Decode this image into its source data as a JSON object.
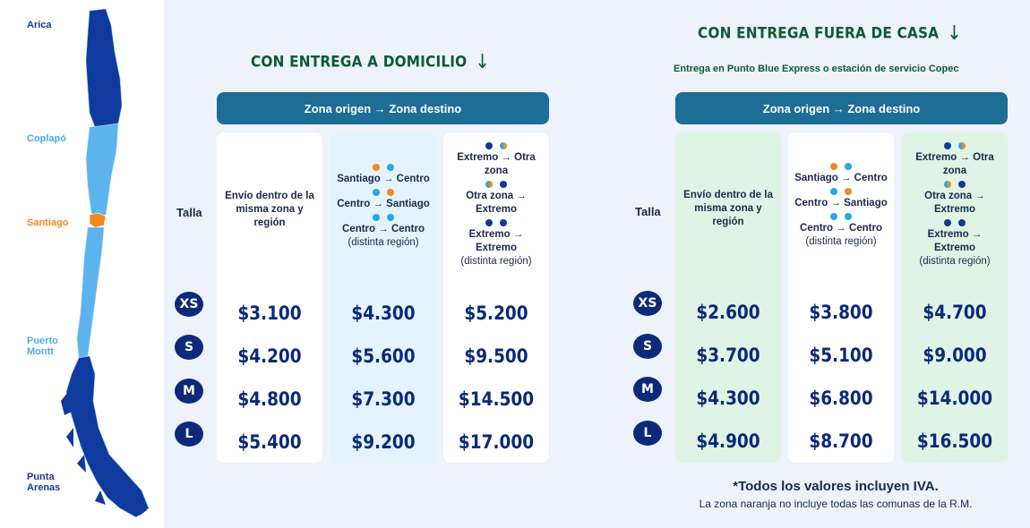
{
  "map": {
    "labels": [
      {
        "key": "arica",
        "text": "Arica",
        "color": "#1c3b8e"
      },
      {
        "key": "copiapo",
        "text": "Coplapó",
        "color": "#4aaee8"
      },
      {
        "key": "santiago",
        "text": "Santiago",
        "color": "#f08a1d"
      },
      {
        "key": "puerto_montt",
        "text": "Puerto\nMontt",
        "color": "#4aaee8"
      },
      {
        "key": "punta_arenas",
        "text": "Punta\nArenas",
        "color": "#1c3b8e"
      }
    ],
    "colors": {
      "north": "#0f3a9e",
      "center": "#5db4ec",
      "santiago": "#f08a1d",
      "south": "#0f3a9e"
    }
  },
  "domicilio": {
    "title": "CON ENTREGA A DOMICILIO",
    "arrow": "↓",
    "zone_header": "Zona origen → Zona destino",
    "talla_label": "Talla",
    "columns": [
      {
        "lines": [
          "Envío dentro de la",
          "misma zona y",
          "región"
        ]
      },
      {
        "lines": [
          "Santiago → Centro",
          "Centro → Santiago",
          "Centro → Centro",
          "(distinta región)"
        ]
      },
      {
        "lines": [
          "Extremo → Otra",
          "zona",
          "Otra zona →",
          "Extremo",
          "Extremo →",
          "Extremo",
          "(distinta región)"
        ]
      }
    ],
    "prices": [
      [
        "$3.100",
        "$4.300",
        "$5.200"
      ],
      [
        "$4.200",
        "$5.600",
        "$9.500"
      ],
      [
        "$4.800",
        "$7.300",
        "$14.500"
      ],
      [
        "$5.400",
        "$9.200",
        "$17.000"
      ]
    ]
  },
  "fuera": {
    "title": "CON ENTREGA FUERA DE CASA",
    "arrow": "↓",
    "subtitle": "Entrega en Punto Blue Express o estación de servicio Copec",
    "zone_header": "Zona origen → Zona destino",
    "talla_label": "Talla",
    "columns": [
      {
        "lines": [
          "Envío dentro de la",
          "misma zona y",
          "región"
        ]
      },
      {
        "lines": [
          "Santiago → Centro",
          "Centro → Santiago",
          "Centro → Centro",
          "(distinta región)"
        ]
      },
      {
        "lines": [
          "Extremo → Otra",
          "zona",
          "Otra zona →",
          "Extremo",
          "Extremo →",
          "Extremo",
          "(distinta región)"
        ]
      }
    ],
    "prices": [
      [
        "$2.600",
        "$3.800",
        "$4.700"
      ],
      [
        "$3.700",
        "$5.100",
        "$9.000"
      ],
      [
        "$4.300",
        "$6.800",
        "$14.000"
      ],
      [
        "$4.900",
        "$8.700",
        "$16.500"
      ]
    ]
  },
  "sizes": [
    "XS",
    "S",
    "M",
    "L"
  ],
  "footnote": {
    "main": "*Todos los valores incluyen IVA.",
    "small": "La zona naranja no incluye todas las comunas de la R.M."
  }
}
